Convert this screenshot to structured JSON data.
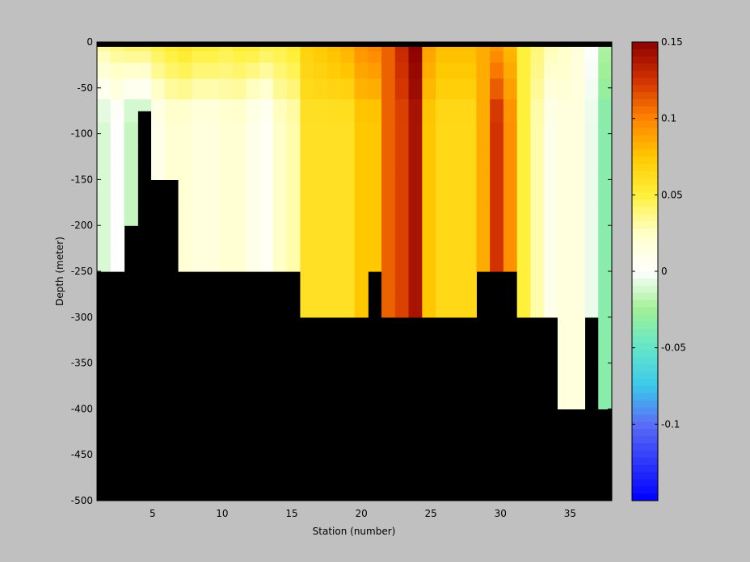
{
  "chart_data": {
    "type": "heatmap",
    "xlabel": "Station (number)",
    "ylabel": "Depth (meter)",
    "xlim": [
      1,
      38
    ],
    "ylim": [
      -500,
      0
    ],
    "xticks": [
      5,
      10,
      15,
      20,
      25,
      30,
      35
    ],
    "yticks": [
      0,
      -50,
      -100,
      -150,
      -200,
      -250,
      -300,
      -350,
      -400,
      -450,
      -500
    ],
    "colorbar": {
      "clim": [
        -0.15,
        0.15
      ],
      "ticks": [
        0.15,
        0.1,
        0.05,
        0,
        -0.05,
        -0.1
      ],
      "tick_labels": [
        "0.15",
        "0.1",
        "0.05",
        "0",
        "-0.05",
        "-0.1"
      ]
    },
    "depth_levels": [
      -5,
      -15,
      -30,
      -50,
      -75,
      -100,
      -125,
      -150,
      -200,
      -250,
      -300,
      -400
    ],
    "station_bottom_depth": [
      -250,
      -250,
      -200,
      -75,
      -150,
      -150,
      -250,
      -250,
      -250,
      -250,
      -250,
      -250,
      -250,
      -250,
      -250,
      -300,
      -300,
      -300,
      -300,
      -300,
      -250,
      -300,
      -300,
      -300,
      -300,
      -300,
      -300,
      -300,
      -250,
      -250,
      -250,
      -300,
      -300,
      -300,
      -400,
      -400,
      -300,
      -400
    ],
    "surface_profile": [
      0.035,
      0.04,
      0.045,
      0.045,
      0.05,
      0.055,
      0.06,
      0.055,
      0.055,
      0.05,
      0.055,
      0.055,
      0.05,
      0.05,
      0.055,
      0.07,
      0.075,
      0.08,
      0.085,
      0.095,
      0.1,
      0.11,
      0.13,
      0.15,
      0.09,
      0.08,
      0.08,
      0.08,
      0.085,
      0.09,
      0.08,
      0.05,
      0.04,
      0.03,
      0.025,
      0.015,
      0.0,
      -0.02
    ],
    "interior_profile": [
      -0.01,
      0.0,
      -0.015,
      -0.015,
      0.01,
      0.02,
      0.02,
      0.015,
      0.015,
      0.02,
      0.02,
      0.01,
      0.005,
      0.025,
      0.03,
      0.06,
      0.06,
      0.06,
      0.06,
      0.075,
      0.075,
      0.11,
      0.12,
      0.14,
      0.075,
      0.065,
      0.065,
      0.065,
      0.085,
      0.125,
      0.095,
      0.05,
      0.03,
      0.01,
      0.015,
      0.015,
      -0.005,
      -0.035
    ]
  }
}
